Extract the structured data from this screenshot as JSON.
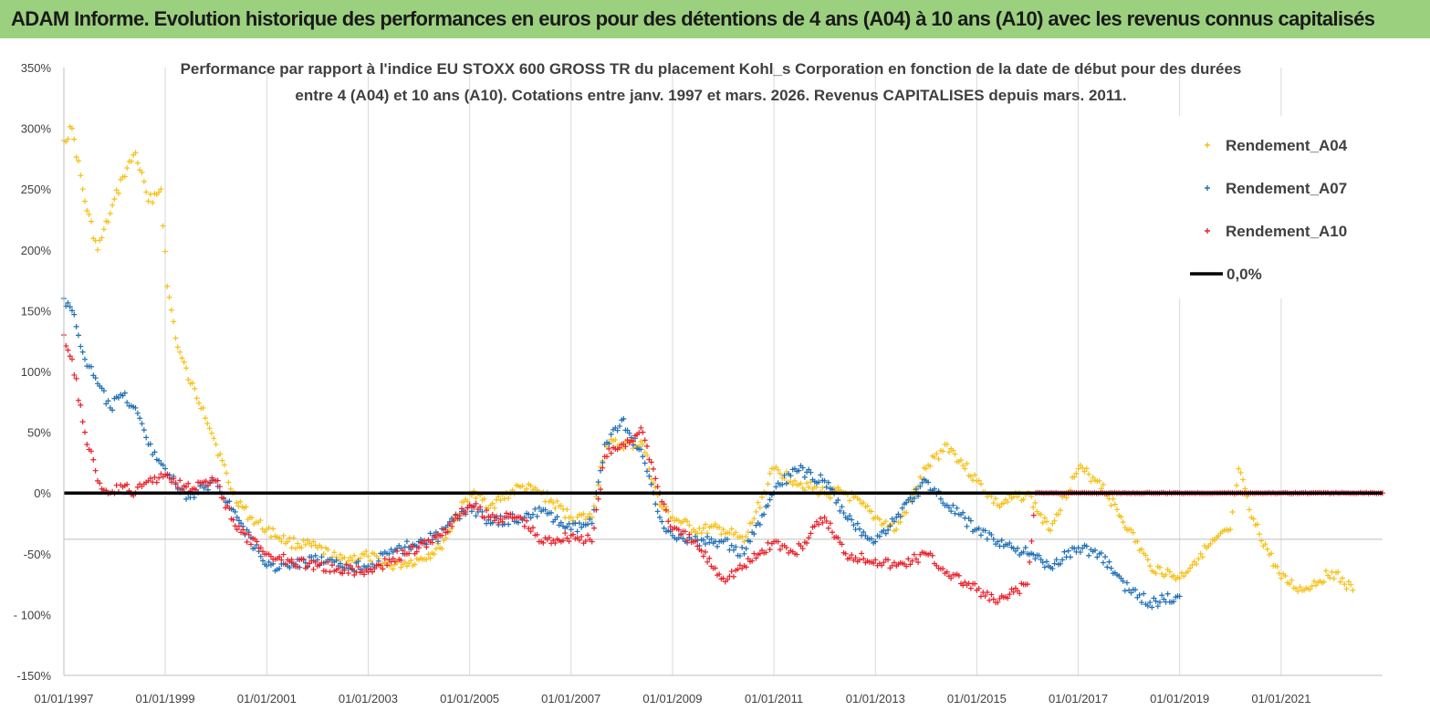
{
  "banner": {
    "title": "ADAM Informe. Evolution historique des performances en euros pour des détentions de 4 ans (A04) à 10 ans (A10) avec les revenus connus capitalisés"
  },
  "chart_data": {
    "type": "scatter",
    "title_line1": "Performance par rapport à l'indice EU STOXX 600 GROSS TR  du placement Kohl_s Corporation en fonction de la date de début pour des durées",
    "title_line2": "entre 4 (A04) et 10 ans (A10). Cotations entre janv. 1997 et mars. 2026. Revenus CAPITALISES depuis mars. 2011.",
    "xlabel": "",
    "ylabel": "",
    "xlim": [
      "1997-01-01",
      "2023-01-01"
    ],
    "ylim": [
      -150,
      350
    ],
    "y_unit": "%",
    "y_ticks": [
      "350%",
      "300%",
      "250%",
      "200%",
      "150%",
      "100%",
      "50%",
      "0%",
      "-50%",
      "- 100%",
      "-150%"
    ],
    "x_ticks": [
      "01/01/1997",
      "01/01/1999",
      "01/01/2001",
      "01/01/2003",
      "01/01/2005",
      "01/01/2007",
      "01/01/2009",
      "01/01/2011",
      "01/01/2013",
      "01/01/2015",
      "01/01/2017",
      "01/01/2019",
      "01/01/2021"
    ],
    "grid": "vertical",
    "legend_position": "top-right",
    "series": [
      {
        "name": "Rendement_A04",
        "color": "#f5c017",
        "marker": "plus",
        "points": [
          [
            "1997-01-01",
            290
          ],
          [
            "1997-03-01",
            300
          ],
          [
            "1997-06-01",
            240
          ],
          [
            "1997-09-01",
            200
          ],
          [
            "1997-12-01",
            230
          ],
          [
            "1998-03-01",
            260
          ],
          [
            "1998-06-01",
            280
          ],
          [
            "1998-09-01",
            240
          ],
          [
            "1998-12-01",
            250
          ],
          [
            "1999-01-15",
            170
          ],
          [
            "1999-04-01",
            120
          ],
          [
            "1999-07-01",
            90
          ],
          [
            "1999-10-01",
            70
          ],
          [
            "2000-01-01",
            40
          ],
          [
            "2000-05-01",
            0
          ],
          [
            "2000-09-01",
            -20
          ],
          [
            "2001-01-01",
            -30
          ],
          [
            "2001-06-01",
            -40
          ],
          [
            "2002-01-01",
            -45
          ],
          [
            "2002-06-01",
            -55
          ],
          [
            "2003-01-01",
            -52
          ],
          [
            "2003-06-01",
            -60
          ],
          [
            "2004-01-01",
            -55
          ],
          [
            "2004-06-01",
            -45
          ],
          [
            "2005-01-01",
            0
          ],
          [
            "2005-06-01",
            -10
          ],
          [
            "2006-01-01",
            5
          ],
          [
            "2006-06-01",
            0
          ],
          [
            "2007-01-01",
            -20
          ],
          [
            "2007-06-01",
            -20
          ],
          [
            "2007-09-01",
            40
          ],
          [
            "2008-01-01",
            40
          ],
          [
            "2008-06-01",
            40
          ],
          [
            "2008-10-01",
            -10
          ],
          [
            "2009-01-01",
            -20
          ],
          [
            "2009-06-01",
            -30
          ],
          [
            "2010-01-01",
            -30
          ],
          [
            "2010-06-01",
            -40
          ],
          [
            "2011-01-01",
            20
          ],
          [
            "2011-06-01",
            10
          ],
          [
            "2012-01-01",
            0
          ],
          [
            "2012-06-01",
            0
          ],
          [
            "2013-01-01",
            -20
          ],
          [
            "2013-06-01",
            -30
          ],
          [
            "2014-01-01",
            20
          ],
          [
            "2014-06-01",
            40
          ],
          [
            "2015-01-01",
            10
          ],
          [
            "2015-06-01",
            -10
          ],
          [
            "2016-01-01",
            0
          ],
          [
            "2016-06-01",
            -30
          ],
          [
            "2017-01-01",
            20
          ],
          [
            "2017-06-01",
            10
          ],
          [
            "2018-01-01",
            -30
          ],
          [
            "2018-06-01",
            -60
          ],
          [
            "2019-01-01",
            -70
          ],
          [
            "2019-06-01",
            -50
          ],
          [
            "2020-01-01",
            -30
          ],
          [
            "2020-03-01",
            20
          ],
          [
            "2020-06-01",
            -20
          ],
          [
            "2021-01-01",
            -70
          ],
          [
            "2021-06-01",
            -80
          ],
          [
            "2022-01-01",
            -65
          ],
          [
            "2022-06-01",
            -80
          ]
        ]
      },
      {
        "name": "Rendement_A07",
        "color": "#1f6fb5",
        "marker": "plus",
        "points": [
          [
            "1997-01-01",
            160
          ],
          [
            "1997-03-01",
            150
          ],
          [
            "1997-06-01",
            110
          ],
          [
            "1997-09-01",
            90
          ],
          [
            "1997-12-01",
            70
          ],
          [
            "1998-03-01",
            80
          ],
          [
            "1998-06-01",
            70
          ],
          [
            "1998-09-01",
            40
          ],
          [
            "1999-01-01",
            20
          ],
          [
            "1999-06-01",
            -5
          ],
          [
            "2000-01-01",
            10
          ],
          [
            "2000-06-01",
            -20
          ],
          [
            "2001-01-01",
            -60
          ],
          [
            "2001-06-01",
            -60
          ],
          [
            "2002-01-01",
            -55
          ],
          [
            "2002-06-01",
            -60
          ],
          [
            "2003-01-01",
            -60
          ],
          [
            "2003-06-01",
            -50
          ],
          [
            "2004-01-01",
            -40
          ],
          [
            "2004-06-01",
            -35
          ],
          [
            "2005-01-01",
            -10
          ],
          [
            "2005-06-01",
            -25
          ],
          [
            "2006-01-01",
            -20
          ],
          [
            "2006-06-01",
            -15
          ],
          [
            "2007-01-01",
            -30
          ],
          [
            "2007-06-01",
            -25
          ],
          [
            "2007-09-01",
            40
          ],
          [
            "2008-01-01",
            60
          ],
          [
            "2008-06-01",
            30
          ],
          [
            "2008-10-01",
            -20
          ],
          [
            "2009-01-01",
            -35
          ],
          [
            "2009-06-01",
            -40
          ],
          [
            "2010-01-01",
            -40
          ],
          [
            "2010-06-01",
            -50
          ],
          [
            "2011-01-01",
            0
          ],
          [
            "2011-06-01",
            20
          ],
          [
            "2012-01-01",
            10
          ],
          [
            "2012-06-01",
            -20
          ],
          [
            "2013-01-01",
            -40
          ],
          [
            "2013-06-01",
            -20
          ],
          [
            "2014-01-01",
            10
          ],
          [
            "2014-06-01",
            -10
          ],
          [
            "2015-01-01",
            -30
          ],
          [
            "2015-06-01",
            -40
          ],
          [
            "2016-01-01",
            -50
          ],
          [
            "2016-06-01",
            -60
          ],
          [
            "2017-01-01",
            -45
          ],
          [
            "2017-06-01",
            -50
          ],
          [
            "2018-01-01",
            -80
          ],
          [
            "2018-06-01",
            -90
          ],
          [
            "2019-01-01",
            -85
          ]
        ]
      },
      {
        "name": "Rendement_A10",
        "color": "#e8212a",
        "marker": "plus",
        "points": [
          [
            "1997-01-01",
            130
          ],
          [
            "1997-03-01",
            110
          ],
          [
            "1997-06-01",
            50
          ],
          [
            "1997-09-01",
            10
          ],
          [
            "1997-12-01",
            0
          ],
          [
            "1998-03-01",
            5
          ],
          [
            "1998-06-01",
            0
          ],
          [
            "1998-09-01",
            10
          ],
          [
            "1999-01-01",
            15
          ],
          [
            "1999-06-01",
            5
          ],
          [
            "2000-01-01",
            10
          ],
          [
            "2000-06-01",
            -30
          ],
          [
            "2001-01-01",
            -50
          ],
          [
            "2001-06-01",
            -55
          ],
          [
            "2002-01-01",
            -60
          ],
          [
            "2002-06-01",
            -62
          ],
          [
            "2003-01-01",
            -65
          ],
          [
            "2003-06-01",
            -55
          ],
          [
            "2004-01-01",
            -45
          ],
          [
            "2004-06-01",
            -35
          ],
          [
            "2005-01-01",
            -10
          ],
          [
            "2005-06-01",
            -20
          ],
          [
            "2006-01-01",
            -20
          ],
          [
            "2006-06-01",
            -40
          ],
          [
            "2007-01-01",
            -35
          ],
          [
            "2007-06-01",
            -40
          ],
          [
            "2007-09-01",
            30
          ],
          [
            "2008-01-01",
            40
          ],
          [
            "2008-06-01",
            50
          ],
          [
            "2008-10-01",
            0
          ],
          [
            "2009-01-01",
            -30
          ],
          [
            "2009-06-01",
            -40
          ],
          [
            "2010-01-01",
            -70
          ],
          [
            "2010-06-01",
            -60
          ],
          [
            "2011-01-01",
            -40
          ],
          [
            "2011-06-01",
            -50
          ],
          [
            "2012-01-01",
            -20
          ],
          [
            "2012-06-01",
            -50
          ],
          [
            "2013-01-01",
            -55
          ],
          [
            "2013-06-01",
            -60
          ],
          [
            "2014-01-01",
            -50
          ],
          [
            "2014-06-01",
            -65
          ],
          [
            "2015-01-01",
            -80
          ],
          [
            "2015-06-01",
            -90
          ],
          [
            "2016-01-01",
            -75
          ],
          [
            "2016-03-01",
            0
          ],
          [
            "2017-01-01",
            0
          ],
          [
            "2018-01-01",
            0
          ],
          [
            "2019-01-01",
            0
          ],
          [
            "2020-01-01",
            0
          ],
          [
            "2021-01-01",
            0
          ],
          [
            "2022-01-01",
            0
          ],
          [
            "2023-01-01",
            0
          ]
        ]
      },
      {
        "name": "0,0%",
        "color": "#000000",
        "marker": "line",
        "points": [
          [
            "1997-01-01",
            0
          ],
          [
            "2023-01-01",
            0
          ]
        ]
      }
    ]
  }
}
